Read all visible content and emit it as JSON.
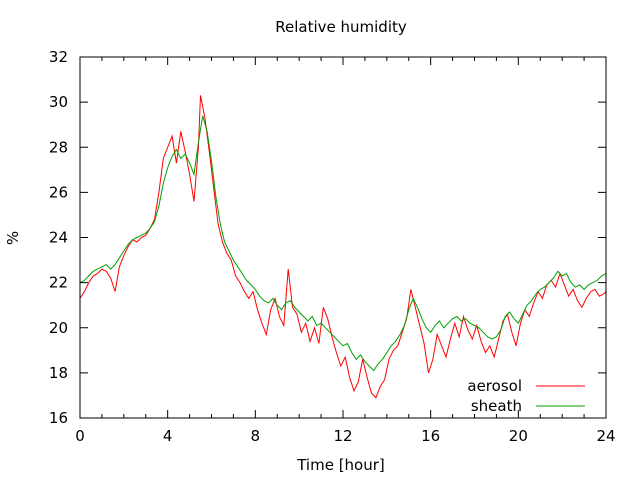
{
  "chart_data": {
    "type": "line",
    "title": "Relative humidity",
    "xlabel": "Time [hour]",
    "ylabel": "%",
    "xlim": [
      0,
      24
    ],
    "ylim": [
      16,
      32
    ],
    "x_ticks": [
      0,
      4,
      8,
      12,
      16,
      20,
      24
    ],
    "y_ticks": [
      16,
      18,
      20,
      22,
      24,
      26,
      28,
      30,
      32
    ],
    "grid": false,
    "legend_position": "bottom-right",
    "series": [
      {
        "name": "aerosol",
        "color": "#ff0000",
        "points": [
          [
            0.0,
            21.3
          ],
          [
            0.2,
            21.6
          ],
          [
            0.4,
            22.0
          ],
          [
            0.6,
            22.3
          ],
          [
            0.8,
            22.4
          ],
          [
            1.0,
            22.6
          ],
          [
            1.2,
            22.5
          ],
          [
            1.4,
            22.2
          ],
          [
            1.6,
            21.6
          ],
          [
            1.8,
            22.7
          ],
          [
            2.0,
            23.2
          ],
          [
            2.2,
            23.6
          ],
          [
            2.4,
            23.9
          ],
          [
            2.6,
            23.8
          ],
          [
            2.8,
            24.0
          ],
          [
            3.0,
            24.1
          ],
          [
            3.2,
            24.4
          ],
          [
            3.4,
            24.8
          ],
          [
            3.6,
            26.0
          ],
          [
            3.8,
            27.5
          ],
          [
            4.0,
            28.0
          ],
          [
            4.2,
            28.5
          ],
          [
            4.4,
            27.3
          ],
          [
            4.6,
            28.7
          ],
          [
            4.8,
            27.8
          ],
          [
            5.0,
            26.8
          ],
          [
            5.2,
            25.6
          ],
          [
            5.4,
            28.0
          ],
          [
            5.5,
            30.3
          ],
          [
            5.7,
            29.3
          ],
          [
            5.9,
            27.8
          ],
          [
            6.1,
            26.2
          ],
          [
            6.3,
            24.6
          ],
          [
            6.5,
            23.8
          ],
          [
            6.7,
            23.3
          ],
          [
            6.9,
            23.0
          ],
          [
            7.1,
            22.3
          ],
          [
            7.3,
            22.0
          ],
          [
            7.5,
            21.6
          ],
          [
            7.7,
            21.3
          ],
          [
            7.9,
            21.6
          ],
          [
            8.1,
            20.8
          ],
          [
            8.3,
            20.2
          ],
          [
            8.5,
            19.7
          ],
          [
            8.7,
            20.8
          ],
          [
            8.9,
            21.3
          ],
          [
            9.1,
            20.5
          ],
          [
            9.3,
            20.1
          ],
          [
            9.5,
            22.6
          ],
          [
            9.7,
            20.9
          ],
          [
            9.9,
            20.6
          ],
          [
            10.1,
            19.8
          ],
          [
            10.3,
            20.2
          ],
          [
            10.5,
            19.4
          ],
          [
            10.7,
            20.0
          ],
          [
            10.9,
            19.3
          ],
          [
            11.1,
            20.9
          ],
          [
            11.3,
            20.4
          ],
          [
            11.5,
            19.6
          ],
          [
            11.7,
            18.9
          ],
          [
            11.9,
            18.3
          ],
          [
            12.1,
            18.7
          ],
          [
            12.3,
            17.8
          ],
          [
            12.5,
            17.2
          ],
          [
            12.7,
            17.6
          ],
          [
            12.9,
            18.6
          ],
          [
            13.1,
            17.8
          ],
          [
            13.3,
            17.1
          ],
          [
            13.5,
            16.9
          ],
          [
            13.7,
            17.4
          ],
          [
            13.9,
            17.7
          ],
          [
            14.1,
            18.6
          ],
          [
            14.3,
            19.0
          ],
          [
            14.5,
            19.2
          ],
          [
            14.7,
            19.8
          ],
          [
            14.9,
            20.4
          ],
          [
            15.1,
            21.7
          ],
          [
            15.3,
            20.9
          ],
          [
            15.5,
            20.1
          ],
          [
            15.7,
            19.3
          ],
          [
            15.9,
            18.0
          ],
          [
            16.1,
            18.6
          ],
          [
            16.3,
            19.7
          ],
          [
            16.5,
            19.2
          ],
          [
            16.7,
            18.7
          ],
          [
            16.9,
            19.5
          ],
          [
            17.1,
            20.2
          ],
          [
            17.3,
            19.6
          ],
          [
            17.5,
            20.5
          ],
          [
            17.7,
            19.9
          ],
          [
            17.9,
            19.5
          ],
          [
            18.1,
            20.1
          ],
          [
            18.3,
            19.4
          ],
          [
            18.5,
            18.9
          ],
          [
            18.7,
            19.2
          ],
          [
            18.9,
            18.7
          ],
          [
            19.1,
            19.5
          ],
          [
            19.3,
            20.3
          ],
          [
            19.5,
            20.6
          ],
          [
            19.7,
            19.8
          ],
          [
            19.9,
            19.2
          ],
          [
            20.1,
            20.2
          ],
          [
            20.3,
            20.8
          ],
          [
            20.5,
            20.5
          ],
          [
            20.7,
            21.1
          ],
          [
            20.9,
            21.6
          ],
          [
            21.1,
            21.3
          ],
          [
            21.3,
            21.9
          ],
          [
            21.5,
            22.1
          ],
          [
            21.7,
            21.8
          ],
          [
            21.9,
            22.4
          ],
          [
            22.1,
            21.9
          ],
          [
            22.3,
            21.4
          ],
          [
            22.5,
            21.7
          ],
          [
            22.7,
            21.2
          ],
          [
            22.9,
            20.9
          ],
          [
            23.1,
            21.3
          ],
          [
            23.3,
            21.6
          ],
          [
            23.5,
            21.7
          ],
          [
            23.7,
            21.4
          ],
          [
            23.9,
            21.5
          ],
          [
            24.0,
            21.6
          ]
        ]
      },
      {
        "name": "sheath",
        "color": "#00a000",
        "points": [
          [
            0.0,
            22.0
          ],
          [
            0.2,
            22.1
          ],
          [
            0.4,
            22.3
          ],
          [
            0.6,
            22.5
          ],
          [
            0.8,
            22.6
          ],
          [
            1.0,
            22.7
          ],
          [
            1.2,
            22.8
          ],
          [
            1.4,
            22.6
          ],
          [
            1.6,
            22.8
          ],
          [
            1.8,
            23.1
          ],
          [
            2.0,
            23.4
          ],
          [
            2.2,
            23.7
          ],
          [
            2.4,
            23.9
          ],
          [
            2.6,
            24.0
          ],
          [
            2.8,
            24.1
          ],
          [
            3.0,
            24.2
          ],
          [
            3.2,
            24.4
          ],
          [
            3.4,
            24.7
          ],
          [
            3.6,
            25.4
          ],
          [
            3.8,
            26.4
          ],
          [
            4.0,
            27.1
          ],
          [
            4.2,
            27.6
          ],
          [
            4.4,
            27.9
          ],
          [
            4.6,
            27.5
          ],
          [
            4.8,
            27.7
          ],
          [
            5.0,
            27.3
          ],
          [
            5.2,
            26.8
          ],
          [
            5.4,
            28.2
          ],
          [
            5.6,
            29.4
          ],
          [
            5.8,
            28.7
          ],
          [
            6.0,
            27.4
          ],
          [
            6.2,
            25.8
          ],
          [
            6.4,
            24.6
          ],
          [
            6.6,
            23.8
          ],
          [
            6.8,
            23.4
          ],
          [
            7.0,
            23.0
          ],
          [
            7.2,
            22.7
          ],
          [
            7.4,
            22.4
          ],
          [
            7.6,
            22.1
          ],
          [
            7.8,
            21.9
          ],
          [
            8.0,
            21.7
          ],
          [
            8.2,
            21.4
          ],
          [
            8.4,
            21.2
          ],
          [
            8.6,
            21.1
          ],
          [
            8.8,
            21.3
          ],
          [
            9.0,
            21.0
          ],
          [
            9.2,
            20.8
          ],
          [
            9.4,
            21.1
          ],
          [
            9.6,
            21.2
          ],
          [
            9.8,
            20.9
          ],
          [
            10.0,
            20.7
          ],
          [
            10.2,
            20.5
          ],
          [
            10.4,
            20.3
          ],
          [
            10.6,
            20.5
          ],
          [
            10.8,
            20.1
          ],
          [
            11.0,
            20.2
          ],
          [
            11.2,
            20.0
          ],
          [
            11.4,
            19.8
          ],
          [
            11.6,
            19.6
          ],
          [
            11.8,
            19.4
          ],
          [
            12.0,
            19.2
          ],
          [
            12.2,
            19.3
          ],
          [
            12.4,
            18.9
          ],
          [
            12.6,
            18.6
          ],
          [
            12.8,
            18.8
          ],
          [
            13.0,
            18.5
          ],
          [
            13.2,
            18.3
          ],
          [
            13.4,
            18.1
          ],
          [
            13.6,
            18.4
          ],
          [
            13.8,
            18.6
          ],
          [
            14.0,
            18.9
          ],
          [
            14.2,
            19.2
          ],
          [
            14.4,
            19.4
          ],
          [
            14.6,
            19.7
          ],
          [
            14.8,
            20.1
          ],
          [
            15.0,
            20.8
          ],
          [
            15.2,
            21.3
          ],
          [
            15.4,
            20.9
          ],
          [
            15.6,
            20.4
          ],
          [
            15.8,
            20.0
          ],
          [
            16.0,
            19.8
          ],
          [
            16.2,
            20.1
          ],
          [
            16.4,
            20.3
          ],
          [
            16.6,
            20.0
          ],
          [
            16.8,
            20.2
          ],
          [
            17.0,
            20.4
          ],
          [
            17.2,
            20.5
          ],
          [
            17.4,
            20.3
          ],
          [
            17.6,
            20.4
          ],
          [
            17.8,
            20.2
          ],
          [
            18.0,
            20.1
          ],
          [
            18.2,
            20.0
          ],
          [
            18.4,
            19.8
          ],
          [
            18.6,
            19.6
          ],
          [
            18.8,
            19.5
          ],
          [
            19.0,
            19.6
          ],
          [
            19.2,
            19.9
          ],
          [
            19.4,
            20.5
          ],
          [
            19.6,
            20.7
          ],
          [
            19.8,
            20.4
          ],
          [
            20.0,
            20.2
          ],
          [
            20.2,
            20.6
          ],
          [
            20.4,
            21.0
          ],
          [
            20.6,
            21.2
          ],
          [
            20.8,
            21.5
          ],
          [
            21.0,
            21.7
          ],
          [
            21.2,
            21.8
          ],
          [
            21.4,
            22.0
          ],
          [
            21.6,
            22.2
          ],
          [
            21.8,
            22.5
          ],
          [
            22.0,
            22.3
          ],
          [
            22.2,
            22.4
          ],
          [
            22.4,
            22.0
          ],
          [
            22.6,
            21.8
          ],
          [
            22.8,
            21.9
          ],
          [
            23.0,
            21.7
          ],
          [
            23.2,
            21.9
          ],
          [
            23.4,
            22.0
          ],
          [
            23.6,
            22.1
          ],
          [
            23.8,
            22.3
          ],
          [
            24.0,
            22.4
          ]
        ]
      }
    ]
  }
}
